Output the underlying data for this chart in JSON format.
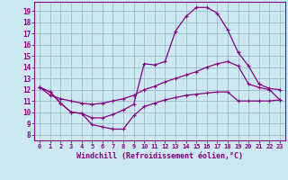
{
  "background_color": "#cce8f0",
  "grid_color": "#99bbcc",
  "line_color": "#880088",
  "xlabel": "Windchill (Refroidissement éolien,°C)",
  "xlim": [
    -0.5,
    23.5
  ],
  "ylim": [
    7.5,
    19.8
  ],
  "yticks": [
    8,
    9,
    10,
    11,
    12,
    13,
    14,
    15,
    16,
    17,
    18,
    19
  ],
  "xticks": [
    0,
    1,
    2,
    3,
    4,
    5,
    6,
    7,
    8,
    9,
    10,
    11,
    12,
    13,
    14,
    15,
    16,
    17,
    18,
    19,
    20,
    21,
    22,
    23
  ],
  "curve1_x": [
    0,
    1,
    2,
    3,
    4,
    5,
    6,
    7,
    8,
    9,
    10,
    11,
    12,
    13,
    14,
    15,
    16,
    17,
    18,
    19,
    20,
    21,
    22,
    23
  ],
  "curve1_y": [
    12.2,
    11.8,
    10.8,
    10.0,
    9.9,
    8.9,
    8.7,
    8.5,
    8.5,
    9.7,
    10.5,
    10.8,
    11.1,
    11.3,
    11.5,
    11.6,
    11.7,
    11.8,
    11.8,
    11.0,
    11.0,
    11.0,
    11.0,
    11.1
  ],
  "curve2_x": [
    0,
    1,
    2,
    3,
    4,
    5,
    6,
    7,
    8,
    9,
    10,
    11,
    12,
    13,
    14,
    15,
    16,
    17,
    18,
    19,
    20,
    21,
    22,
    23
  ],
  "curve2_y": [
    12.2,
    11.5,
    11.2,
    11.0,
    10.8,
    10.7,
    10.8,
    11.0,
    11.2,
    11.5,
    12.0,
    12.3,
    12.7,
    13.0,
    13.3,
    13.6,
    14.0,
    14.3,
    14.5,
    14.1,
    12.5,
    12.2,
    12.0,
    11.1
  ],
  "curve3_x": [
    0,
    1,
    2,
    3,
    4,
    5,
    6,
    7,
    8,
    9,
    10,
    11,
    12,
    13,
    14,
    15,
    16,
    17,
    18,
    19,
    20,
    21,
    22,
    23
  ],
  "curve3_y": [
    12.2,
    11.8,
    10.8,
    10.0,
    9.9,
    9.5,
    9.5,
    9.8,
    10.2,
    10.7,
    14.3,
    14.2,
    14.5,
    17.2,
    18.5,
    19.3,
    19.3,
    18.8,
    17.3,
    15.3,
    14.1,
    12.5,
    12.1,
    12.0
  ],
  "spine_color": "#880088"
}
